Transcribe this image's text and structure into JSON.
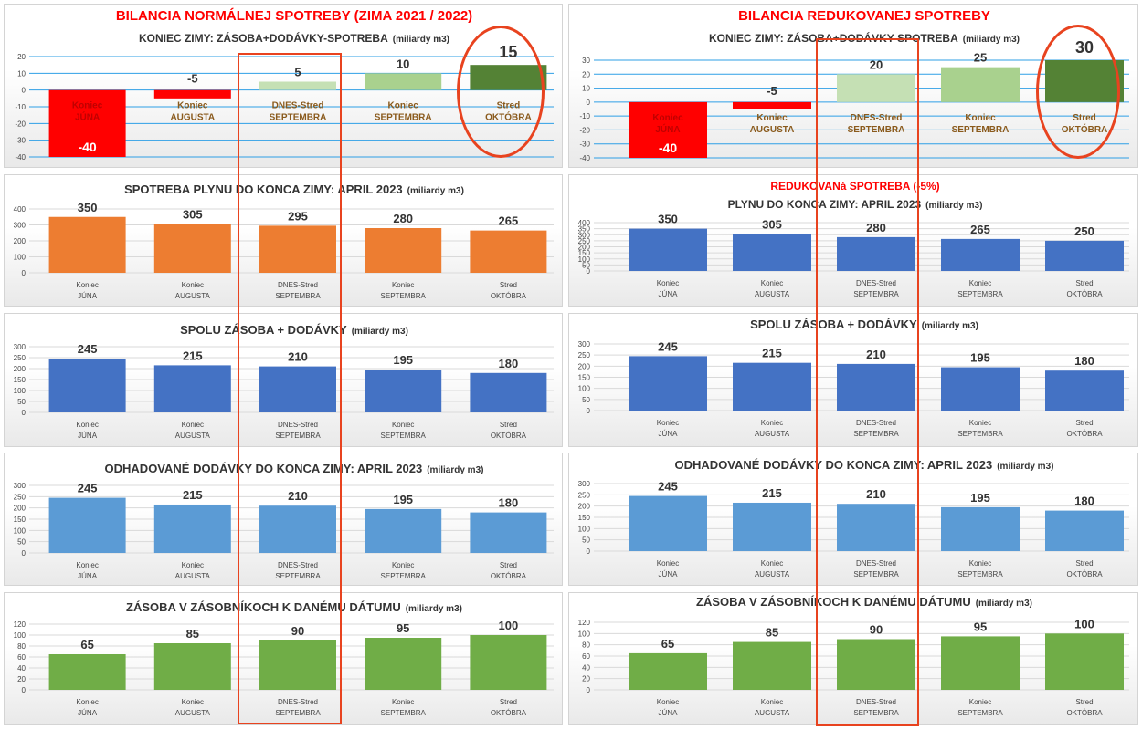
{
  "colors": {
    "red": "#ff0000",
    "orange": "#ed7d31",
    "blue": "#4472c4",
    "lightblue": "#5b9bd5",
    "green": "#70ad47",
    "lightgreen": "#a9d18e",
    "palegreen": "#c5e0b4",
    "darkgreen": "#548235",
    "highlight": "#e8431f",
    "grid": "#d9d9d9",
    "bluegrid": "#2e9fe6",
    "titlered": "#ff0000",
    "text": "#333333",
    "catlabel": "#8a5a1c"
  },
  "chart_data": [
    {
      "id": "L1",
      "type": "bar",
      "title": "BILANCIA NORMÁLNEJ SPOTREBY (ZIMA 2021 / 2022)",
      "subtitle": "KONIEC ZIMY: ZÁSOBA+DODÁVKY-SPOTREBA",
      "unit": "(miliardy m3)",
      "categories": [
        [
          "Koniec",
          "JÚNA"
        ],
        [
          "Koniec",
          "AUGUSTA"
        ],
        [
          "DNES-Stred",
          "SEPTEMBRA"
        ],
        [
          "Koniec",
          "SEPTEMBRA"
        ],
        [
          "Stred",
          "OKTÓBRA"
        ]
      ],
      "values": [
        -40,
        -5,
        5,
        10,
        15
      ],
      "yticks": [
        20,
        10,
        0,
        -10,
        -20,
        -30,
        -40
      ],
      "ylim": [
        -40,
        20
      ]
    },
    {
      "id": "L2",
      "type": "bar",
      "title": "SPOTREBA PLYNU DO KONCA ZIMY: APRIL 2023",
      "unit": "(miliardy m3)",
      "categories": [
        [
          "Koniec",
          "JÚNA"
        ],
        [
          "Koniec",
          "AUGUSTA"
        ],
        [
          "DNES-Stred",
          "SEPTEMBRA"
        ],
        [
          "Koniec",
          "SEPTEMBRA"
        ],
        [
          "Stred",
          "OKTÓBRA"
        ]
      ],
      "values": [
        350,
        305,
        295,
        280,
        265
      ],
      "yticks": [
        400,
        300,
        200,
        100,
        0
      ],
      "ylim": [
        0,
        400
      ]
    },
    {
      "id": "L3",
      "type": "bar",
      "title": "SPOLU ZÁSOBA + DODÁVKY",
      "unit": "(miliardy m3)",
      "categories": [
        [
          "Koniec",
          "JÚNA"
        ],
        [
          "Koniec",
          "AUGUSTA"
        ],
        [
          "DNES-Stred",
          "SEPTEMBRA"
        ],
        [
          "Koniec",
          "SEPTEMBRA"
        ],
        [
          "Stred",
          "OKTÓBRA"
        ]
      ],
      "values": [
        245,
        215,
        210,
        195,
        180
      ],
      "yticks": [
        300,
        250,
        200,
        150,
        100,
        50,
        0
      ],
      "ylim": [
        0,
        300
      ]
    },
    {
      "id": "L4",
      "type": "bar",
      "title": "ODHADOVANÉ DODÁVKY DO KONCA ZIMY: APRIL 2023",
      "unit": "(miliardy m3)",
      "categories": [
        [
          "Koniec",
          "JÚNA"
        ],
        [
          "Koniec",
          "AUGUSTA"
        ],
        [
          "DNES-Stred",
          "SEPTEMBRA"
        ],
        [
          "Koniec",
          "SEPTEMBRA"
        ],
        [
          "Stred",
          "OKTÓBRA"
        ]
      ],
      "values": [
        245,
        215,
        210,
        195,
        180
      ],
      "yticks": [
        300,
        250,
        200,
        150,
        100,
        50,
        0
      ],
      "ylim": [
        0,
        300
      ]
    },
    {
      "id": "L5",
      "type": "bar",
      "title": "ZÁSOBA V ZÁSOBNÍKOCH K DANÉMU DÁTUMU",
      "unit": "(miliardy m3)",
      "categories": [
        [
          "Koniec",
          "JÚNA"
        ],
        [
          "Koniec",
          "AUGUSTA"
        ],
        [
          "DNES-Stred",
          "SEPTEMBRA"
        ],
        [
          "Koniec",
          "SEPTEMBRA"
        ],
        [
          "Stred",
          "OKTÓBRA"
        ]
      ],
      "values": [
        65,
        85,
        90,
        95,
        100
      ],
      "yticks": [
        120,
        100,
        80,
        60,
        40,
        20,
        0
      ],
      "ylim": [
        0,
        120
      ]
    },
    {
      "id": "R1",
      "type": "bar",
      "title": "BILANCIA REDUKOVANEJ SPOTREBY",
      "subtitle": "KONIEC ZIMY: ZÁSOBA+DODÁVKY-SPOTREBA",
      "unit": "(miliardy m3)",
      "categories": [
        [
          "Koniec",
          "JÚNA"
        ],
        [
          "Koniec",
          "AUGUSTA"
        ],
        [
          "DNES-Stred",
          "SEPTEMBRA"
        ],
        [
          "Koniec",
          "SEPTEMBRA"
        ],
        [
          "Stred",
          "OKTÓBRA"
        ]
      ],
      "values": [
        -40,
        -5,
        20,
        25,
        30
      ],
      "yticks": [
        30,
        20,
        10,
        0,
        -10,
        -20,
        -30,
        -40
      ],
      "ylim": [
        -40,
        30
      ]
    },
    {
      "id": "R2",
      "type": "bar",
      "title": "REDUKOVANá SPOTREBA (-5%)",
      "subtitle": "PLYNU DO KONCA ZIMY: APRIL 2023",
      "unit": "(miliardy m3)",
      "categories": [
        [
          "Koniec",
          "JÚNA"
        ],
        [
          "Koniec",
          "AUGUSTA"
        ],
        [
          "DNES-Stred",
          "SEPTEMBRA"
        ],
        [
          "Koniec",
          "SEPTEMBRA"
        ],
        [
          "Stred",
          "OKTÓBRA"
        ]
      ],
      "values": [
        350,
        305,
        280,
        265,
        250
      ],
      "yticks": [
        400,
        350,
        300,
        250,
        200,
        150,
        100,
        50,
        0
      ],
      "ylim": [
        0,
        400
      ]
    },
    {
      "id": "R3",
      "type": "bar",
      "title": "SPOLU ZÁSOBA + DODÁVKY",
      "unit": "(miliardy m3)",
      "categories": [
        [
          "Koniec",
          "JÚNA"
        ],
        [
          "Koniec",
          "AUGUSTA"
        ],
        [
          "DNES-Stred",
          "SEPTEMBRA"
        ],
        [
          "Koniec",
          "SEPTEMBRA"
        ],
        [
          "Stred",
          "OKTÓBRA"
        ]
      ],
      "values": [
        245,
        215,
        210,
        195,
        180
      ],
      "yticks": [
        300,
        250,
        200,
        150,
        100,
        50,
        0
      ],
      "ylim": [
        0,
        300
      ]
    },
    {
      "id": "R4",
      "type": "bar",
      "title": "ODHADOVANÉ DODÁVKY DO KONCA ZIMY: APRIL 2023",
      "unit": "(miliardy m3)",
      "categories": [
        [
          "Koniec",
          "JÚNA"
        ],
        [
          "Koniec",
          "AUGUSTA"
        ],
        [
          "DNES-Stred",
          "SEPTEMBRA"
        ],
        [
          "Koniec",
          "SEPTEMBRA"
        ],
        [
          "Stred",
          "OKTÓBRA"
        ]
      ],
      "values": [
        245,
        215,
        210,
        195,
        180
      ],
      "yticks": [
        300,
        250,
        200,
        150,
        100,
        50,
        0
      ],
      "ylim": [
        0,
        300
      ]
    },
    {
      "id": "R5",
      "type": "bar",
      "title": "ZÁSOBA V ZÁSOBNÍKOCH K DANÉMU DÁTUMU",
      "unit": "(miliardy m3)",
      "categories": [
        [
          "Koniec",
          "JÚNA"
        ],
        [
          "Koniec",
          "AUGUSTA"
        ],
        [
          "DNES-Stred",
          "SEPTEMBRA"
        ],
        [
          "Koniec",
          "SEPTEMBRA"
        ],
        [
          "Stred",
          "OKTÓBRA"
        ]
      ],
      "values": [
        65,
        85,
        90,
        95,
        100
      ],
      "yticks": [
        120,
        100,
        80,
        60,
        40,
        20,
        0
      ],
      "ylim": [
        0,
        120
      ]
    }
  ]
}
